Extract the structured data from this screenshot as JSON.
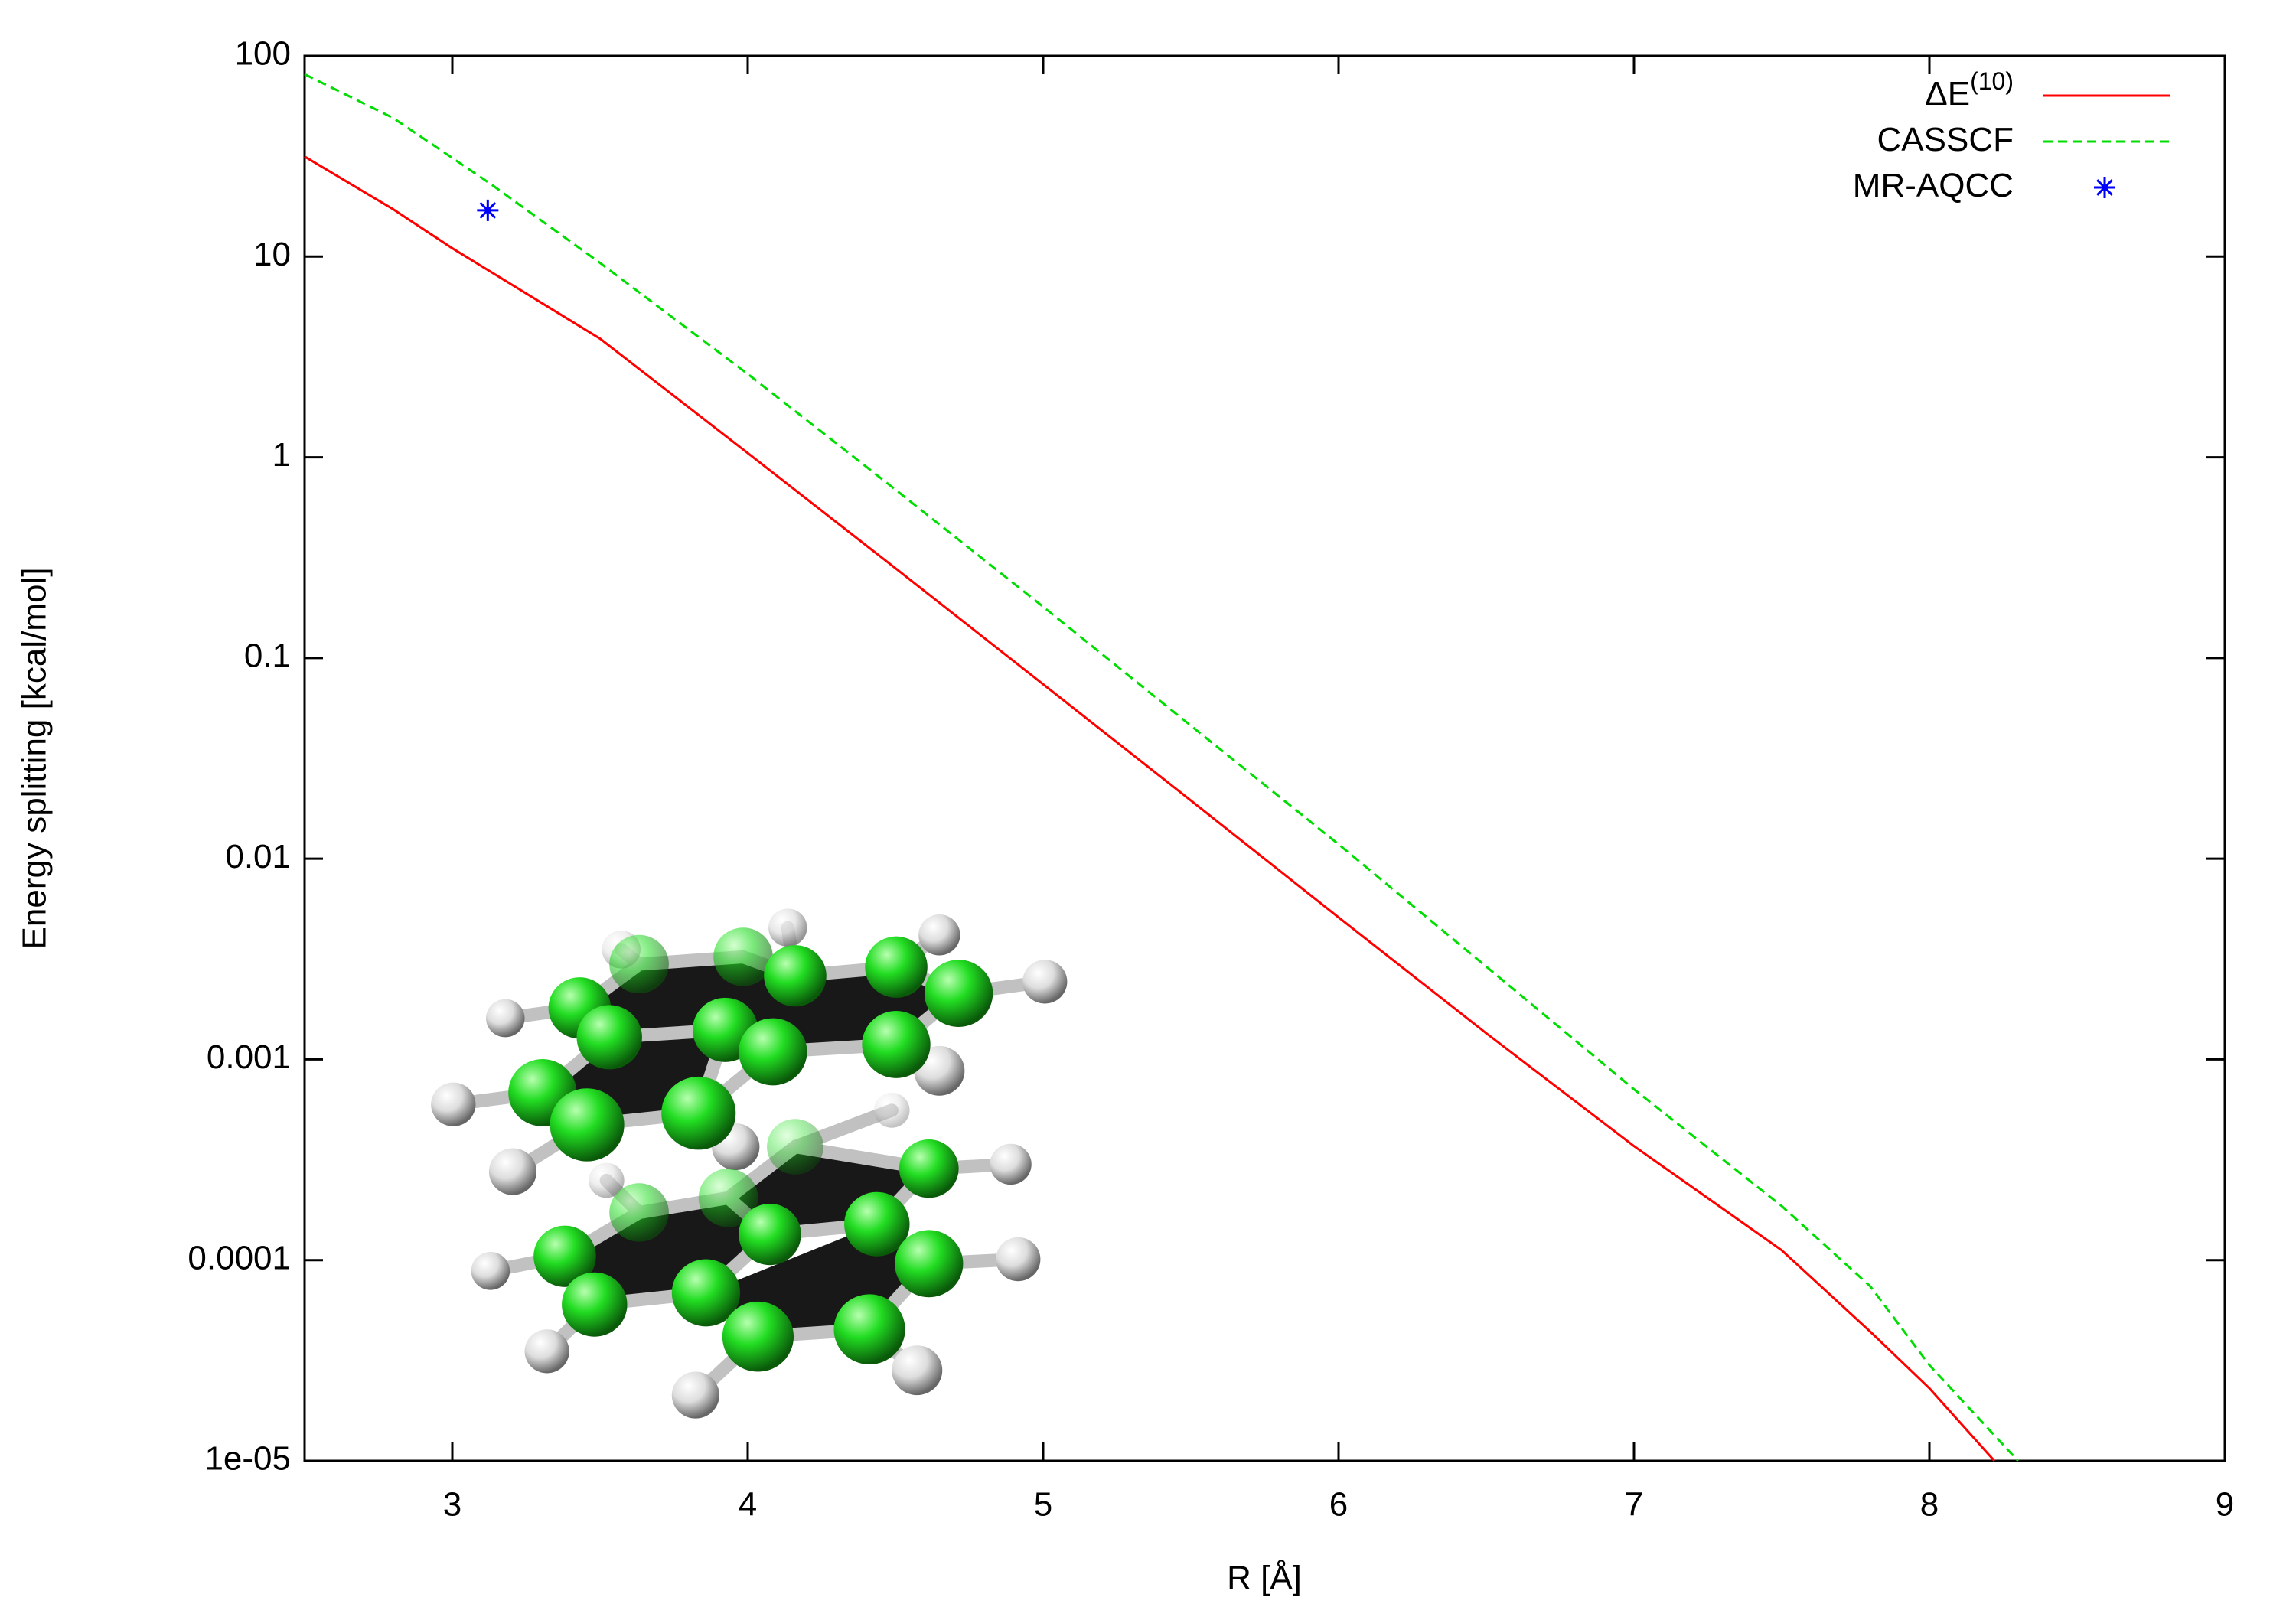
{
  "chart_data": {
    "type": "line",
    "xlabel": "R [Å]",
    "ylabel": "Energy splitting [kcal/mol]",
    "xlim": [
      2.5,
      9
    ],
    "xticks": [
      3,
      4,
      5,
      6,
      7,
      8,
      9
    ],
    "ylim": [
      1e-05,
      100
    ],
    "yscale": "log",
    "yticks": [
      100,
      10,
      1,
      0.1,
      0.01,
      0.001,
      0.0001,
      {
        "value": 1e-05,
        "label": "1e-05"
      }
    ],
    "legend": "upper right",
    "series": [
      {
        "name": "ΔE",
        "name_sup": "(10)",
        "color": "#ff0000",
        "style": "solid",
        "x": [
          2.5,
          2.8,
          3.0,
          3.5,
          4.0,
          4.5,
          5.0,
          5.5,
          6.0,
          6.5,
          7.0,
          7.5,
          7.8,
          8.0,
          8.22
        ],
        "values": [
          31.5,
          17.2,
          11,
          3.9,
          1.05,
          0.28,
          0.074,
          0.0195,
          0.0051,
          0.00135,
          0.00037,
          0.000112,
          4.4e-05,
          2.3e-05,
          1e-05
        ]
      },
      {
        "name": "CASSCF",
        "color": "#00dd00",
        "style": "dashed",
        "x": [
          2.5,
          2.8,
          3.0,
          3.13,
          3.5,
          4.0,
          4.5,
          5.0,
          5.5,
          6.0,
          6.5,
          7.0,
          7.5,
          7.8,
          8.0,
          8.3
        ],
        "values": [
          81,
          49,
          31,
          23,
          9.3,
          2.6,
          0.69,
          0.18,
          0.046,
          0.0118,
          0.0029,
          0.00071,
          0.000186,
          7.4e-05,
          3e-05,
          1e-05
        ]
      },
      {
        "name": "MR-AQCC",
        "color": "#0000ff",
        "style": "points",
        "x": [
          3.12
        ],
        "values": [
          17
        ]
      }
    ]
  }
}
